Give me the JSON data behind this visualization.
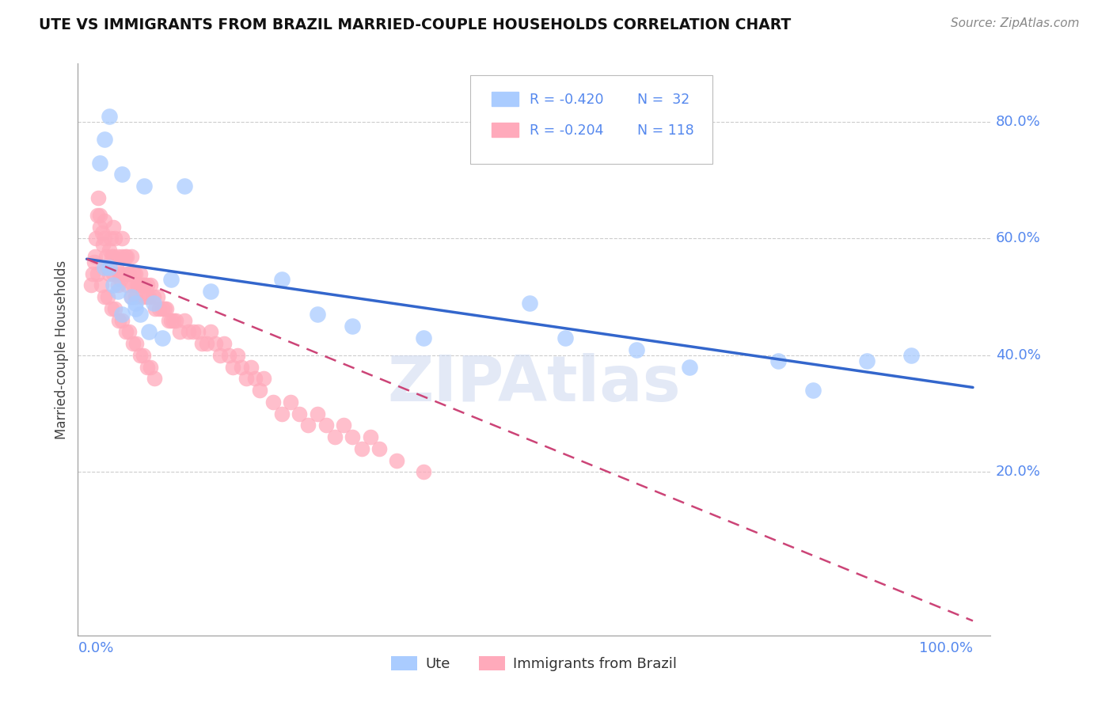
{
  "title": "UTE VS IMMIGRANTS FROM BRAZIL MARRIED-COUPLE HOUSEHOLDS CORRELATION CHART",
  "source": "Source: ZipAtlas.com",
  "ylabel": "Married-couple Households",
  "color_blue": "#aaccff",
  "color_pink": "#ffaabb",
  "color_blue_line": "#3366cc",
  "color_pink_line": "#cc4477",
  "color_axis_labels": "#5588ee",
  "color_grid": "#cccccc",
  "watermark": "ZIPAtlas",
  "ute_x": [
    0.015,
    0.02,
    0.025,
    0.04,
    0.02,
    0.03,
    0.05,
    0.055,
    0.065,
    0.07,
    0.075,
    0.085,
    0.095,
    0.11,
    0.14,
    0.22,
    0.26,
    0.3,
    0.38,
    0.5,
    0.54,
    0.62,
    0.68,
    0.78,
    0.82,
    0.88,
    0.93,
    0.025,
    0.035,
    0.055,
    0.04,
    0.06
  ],
  "ute_y": [
    0.73,
    0.77,
    0.81,
    0.71,
    0.55,
    0.52,
    0.5,
    0.48,
    0.69,
    0.44,
    0.49,
    0.43,
    0.53,
    0.69,
    0.51,
    0.53,
    0.47,
    0.45,
    0.43,
    0.49,
    0.43,
    0.41,
    0.38,
    0.39,
    0.34,
    0.39,
    0.4,
    0.55,
    0.51,
    0.49,
    0.47,
    0.47
  ],
  "brazil_x": [
    0.005,
    0.007,
    0.009,
    0.01,
    0.012,
    0.013,
    0.015,
    0.015,
    0.017,
    0.018,
    0.02,
    0.02,
    0.022,
    0.023,
    0.025,
    0.025,
    0.027,
    0.028,
    0.03,
    0.03,
    0.03,
    0.032,
    0.033,
    0.035,
    0.035,
    0.037,
    0.038,
    0.04,
    0.04,
    0.042,
    0.043,
    0.045,
    0.045,
    0.047,
    0.048,
    0.05,
    0.05,
    0.052,
    0.053,
    0.055,
    0.055,
    0.057,
    0.058,
    0.06,
    0.062,
    0.063,
    0.065,
    0.067,
    0.068,
    0.07,
    0.072,
    0.075,
    0.077,
    0.08,
    0.082,
    0.085,
    0.088,
    0.09,
    0.092,
    0.095,
    0.098,
    0.1,
    0.105,
    0.11,
    0.115,
    0.12,
    0.125,
    0.13,
    0.135,
    0.14,
    0.145,
    0.15,
    0.155,
    0.16,
    0.165,
    0.17,
    0.175,
    0.18,
    0.185,
    0.19,
    0.195,
    0.2,
    0.21,
    0.22,
    0.23,
    0.24,
    0.25,
    0.26,
    0.27,
    0.28,
    0.29,
    0.3,
    0.31,
    0.32,
    0.33,
    0.35,
    0.38,
    0.008,
    0.012,
    0.016,
    0.02,
    0.024,
    0.028,
    0.032,
    0.036,
    0.04,
    0.044,
    0.048,
    0.052,
    0.056,
    0.06,
    0.064,
    0.068,
    0.072,
    0.076
  ],
  "brazil_y": [
    0.52,
    0.54,
    0.57,
    0.6,
    0.64,
    0.67,
    0.62,
    0.64,
    0.61,
    0.59,
    0.6,
    0.63,
    0.57,
    0.55,
    0.54,
    0.58,
    0.6,
    0.57,
    0.62,
    0.57,
    0.54,
    0.6,
    0.55,
    0.57,
    0.52,
    0.54,
    0.53,
    0.57,
    0.6,
    0.54,
    0.57,
    0.57,
    0.52,
    0.54,
    0.54,
    0.57,
    0.5,
    0.52,
    0.54,
    0.54,
    0.5,
    0.52,
    0.52,
    0.54,
    0.5,
    0.52,
    0.52,
    0.5,
    0.52,
    0.5,
    0.52,
    0.5,
    0.48,
    0.5,
    0.48,
    0.48,
    0.48,
    0.48,
    0.46,
    0.46,
    0.46,
    0.46,
    0.44,
    0.46,
    0.44,
    0.44,
    0.44,
    0.42,
    0.42,
    0.44,
    0.42,
    0.4,
    0.42,
    0.4,
    0.38,
    0.4,
    0.38,
    0.36,
    0.38,
    0.36,
    0.34,
    0.36,
    0.32,
    0.3,
    0.32,
    0.3,
    0.28,
    0.3,
    0.28,
    0.26,
    0.28,
    0.26,
    0.24,
    0.26,
    0.24,
    0.22,
    0.2,
    0.56,
    0.54,
    0.52,
    0.5,
    0.5,
    0.48,
    0.48,
    0.46,
    0.46,
    0.44,
    0.44,
    0.42,
    0.42,
    0.4,
    0.4,
    0.38,
    0.38,
    0.36
  ],
  "ute_line_x": [
    0.0,
    1.0
  ],
  "ute_line_y": [
    0.565,
    0.345
  ],
  "brazil_line_x": [
    0.0,
    1.0
  ],
  "brazil_line_y": [
    0.565,
    -0.055
  ],
  "ytick_vals": [
    0.2,
    0.4,
    0.6,
    0.8
  ],
  "ytick_labels": [
    "20.0%",
    "40.0%",
    "60.0%",
    "80.0%"
  ],
  "xlim": [
    -0.01,
    1.02
  ],
  "ylim": [
    -0.08,
    0.9
  ]
}
